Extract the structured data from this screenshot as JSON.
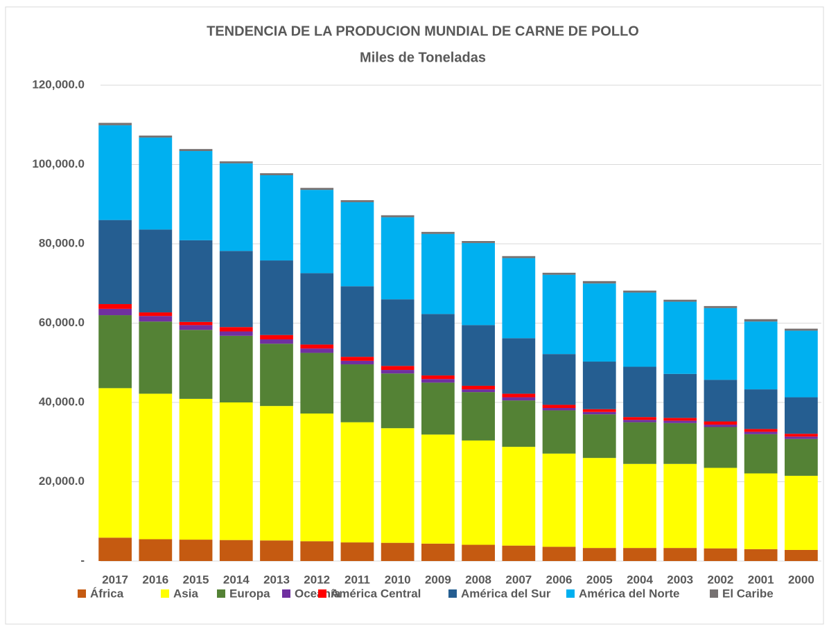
{
  "chart_data": {
    "type": "stacked_bar",
    "title": "TENDENCIA DE LA PRODUCION MUNDIAL DE CARNE DE POLLO",
    "subtitle": "Miles de Toneladas",
    "categories": [
      "2017",
      "2016",
      "2015",
      "2014",
      "2013",
      "2012",
      "2011",
      "2010",
      "2009",
      "2008",
      "2007",
      "2006",
      "2005",
      "2004",
      "2003",
      "2002",
      "2001",
      "2000"
    ],
    "series": [
      {
        "name": "África",
        "color": "#c55a11",
        "values": [
          5900,
          5500,
          5400,
          5300,
          5200,
          5000,
          4700,
          4600,
          4400,
          4100,
          3900,
          3600,
          3300,
          3300,
          3300,
          3200,
          3000,
          2800
        ]
      },
      {
        "name": "Asia",
        "color": "#ffff00",
        "values": [
          37700,
          36700,
          35500,
          34700,
          33900,
          32200,
          30300,
          28900,
          27500,
          26300,
          24900,
          23500,
          22700,
          21200,
          21200,
          20300,
          19100,
          18700
        ]
      },
      {
        "name": "Europa",
        "color": "#548235",
        "values": [
          18400,
          18200,
          17400,
          16800,
          15700,
          15300,
          14600,
          13800,
          13100,
          12200,
          11700,
          10900,
          11000,
          10500,
          10300,
          10300,
          9900,
          9300
        ]
      },
      {
        "name": "Oceanía",
        "color": "#7030a0",
        "values": [
          1600,
          1400,
          1200,
          1100,
          1100,
          1100,
          900,
          900,
          900,
          700,
          800,
          600,
          600,
          600,
          600,
          600,
          600,
          600
        ]
      },
      {
        "name": "América Central",
        "color": "#ff0000",
        "values": [
          1200,
          900,
          800,
          1100,
          1100,
          1000,
          1000,
          1000,
          900,
          900,
          900,
          800,
          700,
          700,
          700,
          800,
          700,
          700
        ]
      },
      {
        "name": "América del Sur",
        "color": "#255e91",
        "values": [
          21200,
          20900,
          20600,
          19200,
          18800,
          18000,
          17800,
          16800,
          15500,
          15300,
          14000,
          12800,
          12000,
          12700,
          11100,
          10500,
          10000,
          9200
        ]
      },
      {
        "name": "América del Norte",
        "color": "#00b0f0",
        "values": [
          23900,
          23200,
          22500,
          22100,
          21500,
          21000,
          21200,
          20700,
          20200,
          20700,
          20200,
          20000,
          19700,
          18700,
          18200,
          18100,
          17100,
          16800
        ]
      },
      {
        "name": "El Caribe",
        "color": "#767171",
        "values": [
          600,
          500,
          500,
          500,
          500,
          500,
          500,
          500,
          500,
          500,
          500,
          500,
          600,
          500,
          500,
          500,
          600,
          500
        ]
      }
    ],
    "ylim": [
      0,
      120000
    ],
    "yticks": [
      {
        "value": 0,
        "label": "-"
      },
      {
        "value": 20000,
        "label": "20,000.0"
      },
      {
        "value": 40000,
        "label": "40,000.0"
      },
      {
        "value": 60000,
        "label": "60,000.0"
      },
      {
        "value": 80000,
        "label": "80,000.0"
      },
      {
        "value": 100000,
        "label": "100,000.0"
      },
      {
        "value": 120000,
        "label": "120,000.0"
      }
    ],
    "grid": true,
    "legend": "bottom"
  }
}
